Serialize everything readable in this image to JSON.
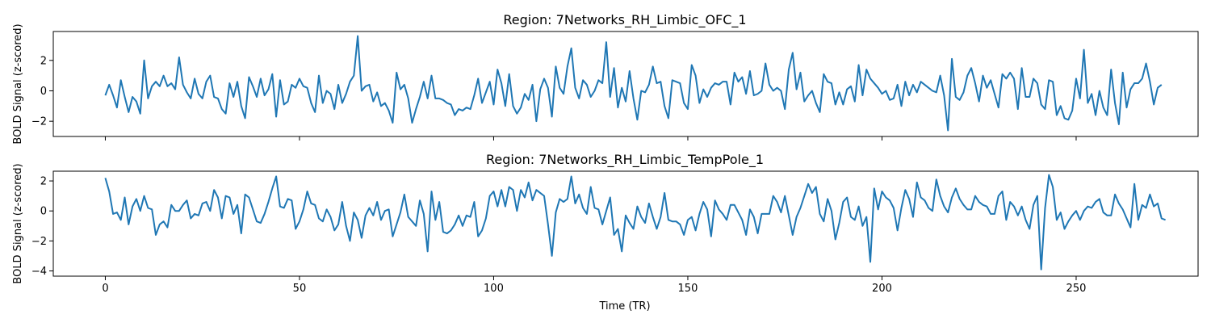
{
  "chart_data": {
    "type": "line",
    "line_color": "#1f77b4",
    "xlabel": "Time (TR)",
    "xlim": [
      -13.4,
      281.4
    ],
    "xticks": [
      0,
      50,
      100,
      150,
      200,
      250
    ],
    "xtick_labels": [
      "0",
      "50",
      "100",
      "150",
      "200",
      "250"
    ],
    "grid": false,
    "legend": false,
    "panels": [
      {
        "title": "Region: 7Networks_RH_Limbic_OFC_1",
        "ylabel": "BOLD Signal (z-scored)",
        "ylim": [
          -3.0,
          3.9
        ],
        "yticks": [
          -2,
          0,
          2
        ],
        "ytick_labels": [
          "−2",
          "0",
          "2"
        ],
        "x_start": 0,
        "values": [
          -0.3,
          0.4,
          -0.3,
          -1.1,
          0.7,
          -0.4,
          -1.4,
          -0.4,
          -0.7,
          -1.5,
          2.0,
          -0.5,
          0.3,
          0.6,
          0.3,
          1.0,
          0.3,
          0.5,
          0.1,
          2.2,
          0.4,
          -0.1,
          -0.5,
          0.8,
          -0.2,
          -0.5,
          0.6,
          1.0,
          -0.4,
          -0.5,
          -1.2,
          -1.5,
          0.5,
          -0.4,
          0.6,
          -1.0,
          -1.8,
          0.9,
          0.3,
          -0.4,
          0.8,
          -0.3,
          0.1,
          1.1,
          -1.7,
          0.7,
          -0.9,
          -0.7,
          0.4,
          0.2,
          0.8,
          0.3,
          0.2,
          -0.8,
          -1.4,
          1.0,
          -0.8,
          0.0,
          -0.2,
          -1.2,
          0.4,
          -0.8,
          -0.2,
          0.6,
          1.0,
          3.6,
          0.0,
          0.3,
          0.4,
          -0.7,
          -0.1,
          -1.0,
          -0.8,
          -1.3,
          -2.1,
          1.2,
          0.1,
          0.4,
          -0.5,
          -2.1,
          -1.2,
          -0.4,
          0.6,
          -0.5,
          1.0,
          -0.5,
          -0.5,
          -0.6,
          -0.8,
          -0.9,
          -1.6,
          -1.2,
          -1.3,
          -1.1,
          -1.2,
          -0.3,
          0.8,
          -0.8,
          -0.1,
          0.6,
          -0.9,
          1.4,
          0.5,
          -1.0,
          1.1,
          -1.0,
          -1.5,
          -1.1,
          -0.2,
          -0.6,
          0.4,
          -2.0,
          0.1,
          0.8,
          0.2,
          -1.7,
          1.6,
          0.2,
          -0.2,
          1.6,
          2.8,
          0.2,
          -0.5,
          0.7,
          0.4,
          -0.4,
          0.0,
          0.7,
          0.5,
          3.2,
          -0.4,
          1.5,
          -1.1,
          0.2,
          -0.7,
          1.3,
          -0.5,
          -1.9,
          0.0,
          -0.1,
          0.4,
          1.6,
          0.5,
          0.6,
          -1.0,
          -1.8,
          0.7,
          0.6,
          0.5,
          -0.8,
          -1.2,
          1.7,
          1.0,
          -0.8,
          0.1,
          -0.4,
          0.2,
          0.5,
          0.4,
          0.6,
          0.6,
          -0.9,
          1.2,
          0.6,
          0.9,
          -0.2,
          1.3,
          -0.3,
          -0.2,
          0.0,
          1.8,
          0.4,
          0.0,
          0.2,
          0.0,
          -1.2,
          1.4,
          2.5,
          0.1,
          1.2,
          -0.7,
          -0.3,
          0.0,
          -0.8,
          -1.4,
          1.1,
          0.6,
          0.5,
          -0.9,
          -0.1,
          -0.9,
          0.1,
          0.3,
          -0.7,
          1.7,
          -0.3,
          1.4,
          0.8,
          0.5,
          0.2,
          -0.2,
          0.0,
          -0.6,
          -0.5,
          0.4,
          -1.0,
          0.6,
          -0.3,
          0.4,
          -0.1,
          0.6,
          0.4,
          0.2,
          0.0,
          -0.1,
          1.0,
          -0.3,
          -2.6,
          2.1,
          -0.4,
          -0.6,
          -0.1,
          1.0,
          1.5,
          0.5,
          -0.7,
          1.0,
          0.2,
          0.7,
          -0.2,
          -1.1,
          1.1,
          0.8,
          1.2,
          0.8,
          -1.2,
          1.5,
          -0.4,
          -0.4,
          0.8,
          0.5,
          -0.9,
          -1.2,
          0.7,
          0.6,
          -1.6,
          -1.0,
          -1.8,
          -1.9,
          -1.3,
          0.8,
          -0.5,
          2.7,
          -0.8,
          -0.2,
          -1.6,
          0.0,
          -1.1,
          -1.6,
          1.4,
          -0.8,
          -2.2,
          1.2,
          -1.1,
          0.1,
          0.5,
          0.5,
          0.8,
          1.8,
          0.6,
          -0.9,
          0.2,
          0.4
        ]
      },
      {
        "title": "Region: 7Networks_RH_Limbic_TempPole_1",
        "ylabel": "BOLD Signal (z-scored)",
        "ylim": [
          -4.35,
          2.65
        ],
        "yticks": [
          -4,
          -2,
          0,
          2
        ],
        "ytick_labels": [
          "−4",
          "−2",
          "0",
          "2"
        ],
        "x_start": 0,
        "values": [
          2.2,
          1.3,
          -0.2,
          -0.1,
          -0.6,
          0.9,
          -0.9,
          0.3,
          0.8,
          0.0,
          1.0,
          0.2,
          0.1,
          -1.6,
          -0.9,
          -0.7,
          -1.1,
          0.4,
          0.0,
          0.0,
          0.4,
          0.7,
          -0.5,
          -0.2,
          -0.3,
          0.5,
          0.6,
          0.0,
          1.4,
          0.9,
          -0.5,
          1.0,
          0.9,
          -0.2,
          0.4,
          -1.5,
          1.1,
          0.9,
          0.1,
          -0.7,
          -0.8,
          -0.2,
          0.6,
          1.5,
          2.3,
          0.3,
          0.2,
          0.8,
          0.7,
          -1.2,
          -0.7,
          0.1,
          1.3,
          0.5,
          0.4,
          -0.5,
          -0.7,
          0.1,
          -0.4,
          -1.3,
          -0.9,
          0.6,
          -1.0,
          -2.0,
          -0.1,
          -0.6,
          -1.8,
          -0.3,
          0.2,
          -0.3,
          0.6,
          -0.6,
          0.0,
          0.1,
          -1.7,
          -0.9,
          -0.1,
          1.1,
          -0.4,
          -0.7,
          -1.0,
          0.7,
          -0.2,
          -2.7,
          1.3,
          -0.6,
          0.6,
          -1.4,
          -1.5,
          -1.3,
          -0.9,
          -0.3,
          -1.0,
          -0.3,
          -0.4,
          0.6,
          -1.7,
          -1.3,
          -0.5,
          1.0,
          1.3,
          0.3,
          1.4,
          0.3,
          1.6,
          1.4,
          0.0,
          1.4,
          0.9,
          1.9,
          0.7,
          1.4,
          1.2,
          1.0,
          -0.9,
          -3.0,
          -0.1,
          0.8,
          0.6,
          0.8,
          2.3,
          0.5,
          1.1,
          0.2,
          -0.2,
          1.6,
          0.2,
          0.1,
          -0.9,
          0.0,
          0.9,
          -1.6,
          -1.2,
          -2.7,
          -0.3,
          -0.8,
          -1.2,
          0.3,
          -0.4,
          -0.8,
          0.5,
          -0.4,
          -1.2,
          -0.4,
          1.2,
          -0.6,
          -0.7,
          -0.7,
          -0.9,
          -1.6,
          -0.6,
          -0.4,
          -1.3,
          -0.2,
          0.6,
          0.1,
          -1.7,
          0.7,
          0.1,
          -0.2,
          -0.6,
          0.4,
          0.4,
          -0.1,
          -0.6,
          -1.6,
          0.1,
          -0.4,
          -1.5,
          -0.2,
          -0.2,
          -0.2,
          1.0,
          0.6,
          -0.1,
          1.0,
          -0.3,
          -1.6,
          -0.4,
          0.2,
          1.0,
          1.8,
          1.2,
          1.6,
          -0.2,
          -0.7,
          0.8,
          0.0,
          -1.9,
          -0.8,
          0.6,
          0.9,
          -0.4,
          -0.6,
          0.3,
          -1.0,
          -0.4,
          -3.4,
          1.5,
          0.1,
          1.3,
          0.9,
          0.7,
          0.2,
          -1.3,
          0.2,
          1.4,
          0.8,
          -0.4,
          1.9,
          0.9,
          0.7,
          0.2,
          0.0,
          2.1,
          1.0,
          0.3,
          -0.1,
          0.9,
          1.5,
          0.8,
          0.4,
          0.1,
          0.1,
          1.0,
          0.6,
          0.4,
          0.3,
          -0.2,
          -0.2,
          1.0,
          1.3,
          -0.6,
          0.6,
          0.3,
          -0.3,
          0.3,
          -0.6,
          -1.2,
          0.4,
          1.0,
          -3.9,
          0.2,
          2.4,
          1.6,
          -0.6,
          -0.1,
          -1.2,
          -0.7,
          -0.3,
          0.0,
          -0.6,
          0.0,
          0.3,
          0.2,
          0.6,
          0.8,
          -0.1,
          -0.3,
          -0.3,
          1.1,
          0.5,
          0.1,
          -0.5,
          -1.1,
          1.8,
          -0.6,
          0.4,
          0.2,
          1.1,
          0.3,
          0.5,
          -0.5,
          -0.6
        ]
      }
    ]
  }
}
